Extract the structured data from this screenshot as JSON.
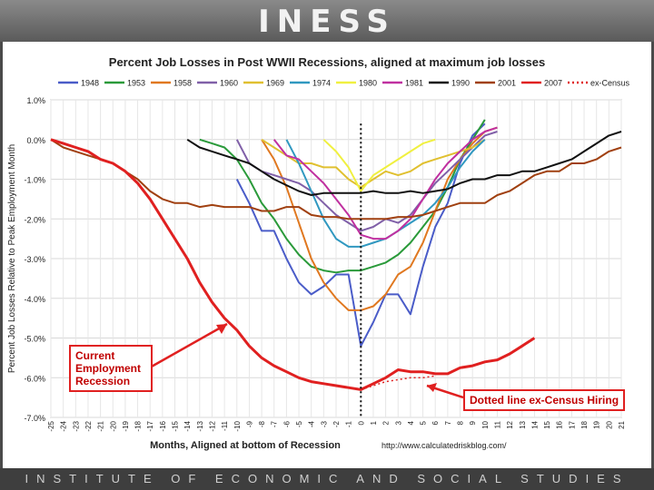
{
  "header": {
    "logo_text": "INESS"
  },
  "footer": {
    "text": "INSTITUTE OF ECONOMIC AND SOCIAL STUDIES"
  },
  "source": "http://www.calculatedriskblog.com/",
  "callouts": {
    "current": "Current Employment Recession",
    "dotted": "Dotted line ex-Census Hiring"
  },
  "chart_data": {
    "type": "line",
    "title": "Percent Job Losses in Post WWII Recessions, aligned at maximum job losses",
    "xlabel": "Months, Aligned at bottom of Recession",
    "ylabel": "Percent Job Losses Relative to Peak Employment Month",
    "xlim": [
      -25,
      21
    ],
    "ylim": [
      -7,
      1
    ],
    "x_ticks": [
      -25,
      -24,
      -23,
      -22,
      -21,
      -20,
      -19,
      -18,
      -17,
      -16,
      -15,
      -14,
      -13,
      -12,
      -11,
      -10,
      -9,
      -8,
      -7,
      -6,
      -5,
      -4,
      -3,
      -2,
      -1,
      0,
      1,
      2,
      3,
      4,
      5,
      6,
      7,
      8,
      9,
      10,
      11,
      12,
      13,
      14,
      15,
      16,
      17,
      18,
      19,
      20,
      21
    ],
    "y_ticks": [
      "1.0%",
      "0.0%",
      "-1.0%",
      "-2.0%",
      "-3.0%",
      "-4.0%",
      "-5.0%",
      "-6.0%",
      "-7.0%"
    ],
    "y_tick_values": [
      1,
      0,
      -1,
      -2,
      -3,
      -4,
      -5,
      -6,
      -7
    ],
    "grid": true,
    "legend_position": "top",
    "vertical_marker_x": 0,
    "series": [
      {
        "name": "1948",
        "color": "#4a5cc8",
        "points": [
          [
            -10,
            -1.0
          ],
          [
            -9,
            -1.6
          ],
          [
            -8,
            -2.3
          ],
          [
            -7,
            -2.3
          ],
          [
            -6,
            -3.0
          ],
          [
            -5,
            -3.6
          ],
          [
            -4,
            -3.9
          ],
          [
            -3,
            -3.7
          ],
          [
            -2,
            -3.4
          ],
          [
            -1,
            -3.4
          ],
          [
            0,
            -5.2
          ],
          [
            1,
            -4.6
          ],
          [
            2,
            -3.9
          ],
          [
            3,
            -3.9
          ],
          [
            4,
            -4.4
          ],
          [
            5,
            -3.2
          ],
          [
            6,
            -2.2
          ],
          [
            7,
            -1.6
          ],
          [
            8,
            -0.6
          ],
          [
            9,
            0.1
          ],
          [
            10,
            0.4
          ]
        ]
      },
      {
        "name": "1953",
        "color": "#2a9a3a",
        "points": [
          [
            -13,
            0.0
          ],
          [
            -12,
            -0.1
          ],
          [
            -11,
            -0.2
          ],
          [
            -10,
            -0.5
          ],
          [
            -9,
            -1.0
          ],
          [
            -8,
            -1.6
          ],
          [
            -7,
            -2.0
          ],
          [
            -6,
            -2.5
          ],
          [
            -5,
            -2.9
          ],
          [
            -4,
            -3.2
          ],
          [
            -3,
            -3.3
          ],
          [
            -2,
            -3.35
          ],
          [
            -1,
            -3.3
          ],
          [
            0,
            -3.3
          ],
          [
            1,
            -3.2
          ],
          [
            2,
            -3.1
          ],
          [
            3,
            -2.9
          ],
          [
            4,
            -2.6
          ],
          [
            5,
            -2.2
          ],
          [
            6,
            -1.8
          ],
          [
            7,
            -1.2
          ],
          [
            8,
            -0.5
          ],
          [
            9,
            0.0
          ],
          [
            10,
            0.5
          ]
        ]
      },
      {
        "name": "1958",
        "color": "#e07820",
        "points": [
          [
            -8,
            0.0
          ],
          [
            -7,
            -0.5
          ],
          [
            -6,
            -1.2
          ],
          [
            -5,
            -2.1
          ],
          [
            -4,
            -3.0
          ],
          [
            -3,
            -3.6
          ],
          [
            -2,
            -4.0
          ],
          [
            -1,
            -4.3
          ],
          [
            0,
            -4.3
          ],
          [
            1,
            -4.2
          ],
          [
            2,
            -3.9
          ],
          [
            3,
            -3.4
          ],
          [
            4,
            -3.2
          ],
          [
            5,
            -2.6
          ],
          [
            6,
            -1.8
          ],
          [
            7,
            -1.0
          ],
          [
            8,
            -0.5
          ],
          [
            9,
            -0.1
          ],
          [
            10,
            0.2
          ],
          [
            11,
            0.3
          ]
        ]
      },
      {
        "name": "1960",
        "color": "#8060a8",
        "points": [
          [
            -10,
            0.0
          ],
          [
            -9,
            -0.6
          ],
          [
            -8,
            -0.8
          ],
          [
            -7,
            -0.9
          ],
          [
            -6,
            -1.0
          ],
          [
            -5,
            -1.1
          ],
          [
            -4,
            -1.3
          ],
          [
            -3,
            -1.6
          ],
          [
            -2,
            -1.9
          ],
          [
            -1,
            -2.1
          ],
          [
            0,
            -2.3
          ],
          [
            1,
            -2.2
          ],
          [
            2,
            -2.0
          ],
          [
            3,
            -2.1
          ],
          [
            4,
            -1.9
          ],
          [
            5,
            -1.5
          ],
          [
            6,
            -1.1
          ],
          [
            7,
            -0.8
          ],
          [
            8,
            -0.5
          ],
          [
            9,
            -0.2
          ],
          [
            10,
            0.1
          ],
          [
            11,
            0.2
          ]
        ]
      },
      {
        "name": "1969",
        "color": "#e0c030",
        "points": [
          [
            -8,
            0.0
          ],
          [
            -7,
            -0.2
          ],
          [
            -6,
            -0.4
          ],
          [
            -5,
            -0.6
          ],
          [
            -4,
            -0.6
          ],
          [
            -3,
            -0.7
          ],
          [
            -2,
            -0.7
          ],
          [
            -1,
            -1.0
          ],
          [
            0,
            -1.2
          ],
          [
            1,
            -1.0
          ],
          [
            2,
            -0.8
          ],
          [
            3,
            -0.9
          ],
          [
            4,
            -0.8
          ],
          [
            5,
            -0.6
          ],
          [
            6,
            -0.5
          ],
          [
            7,
            -0.4
          ],
          [
            8,
            -0.3
          ],
          [
            9,
            -0.2
          ],
          [
            10,
            0.0
          ]
        ]
      },
      {
        "name": "1974",
        "color": "#3098c0",
        "points": [
          [
            -6,
            0.0
          ],
          [
            -5,
            -0.6
          ],
          [
            -4,
            -1.3
          ],
          [
            -3,
            -2.0
          ],
          [
            -2,
            -2.5
          ],
          [
            -1,
            -2.7
          ],
          [
            0,
            -2.7
          ],
          [
            1,
            -2.6
          ],
          [
            2,
            -2.5
          ],
          [
            3,
            -2.3
          ],
          [
            4,
            -2.1
          ],
          [
            5,
            -1.9
          ],
          [
            6,
            -1.6
          ],
          [
            7,
            -1.2
          ],
          [
            8,
            -0.7
          ],
          [
            9,
            -0.3
          ],
          [
            10,
            0.0
          ]
        ]
      },
      {
        "name": "1980",
        "color": "#f0f040",
        "points": [
          [
            -3,
            0.0
          ],
          [
            -2,
            -0.3
          ],
          [
            -1,
            -0.7
          ],
          [
            0,
            -1.3
          ],
          [
            1,
            -0.9
          ],
          [
            2,
            -0.7
          ],
          [
            3,
            -0.5
          ],
          [
            4,
            -0.3
          ],
          [
            5,
            -0.1
          ],
          [
            6,
            0.0
          ]
        ]
      },
      {
        "name": "1981",
        "color": "#c030a0",
        "points": [
          [
            -7,
            0.0
          ],
          [
            -6,
            -0.4
          ],
          [
            -5,
            -0.5
          ],
          [
            -4,
            -0.8
          ],
          [
            -3,
            -1.1
          ],
          [
            -2,
            -1.5
          ],
          [
            -1,
            -1.9
          ],
          [
            0,
            -2.4
          ],
          [
            1,
            -2.5
          ],
          [
            2,
            -2.5
          ],
          [
            3,
            -2.3
          ],
          [
            4,
            -2.0
          ],
          [
            5,
            -1.5
          ],
          [
            6,
            -1.0
          ],
          [
            7,
            -0.6
          ],
          [
            8,
            -0.3
          ],
          [
            9,
            0.0
          ],
          [
            10,
            0.2
          ],
          [
            11,
            0.3
          ]
        ]
      },
      {
        "name": "1990",
        "color": "#111111",
        "points": [
          [
            -14,
            0.0
          ],
          [
            -13,
            -0.2
          ],
          [
            -12,
            -0.3
          ],
          [
            -11,
            -0.4
          ],
          [
            -10,
            -0.5
          ],
          [
            -9,
            -0.6
          ],
          [
            -8,
            -0.8
          ],
          [
            -7,
            -1.0
          ],
          [
            -6,
            -1.15
          ],
          [
            -5,
            -1.3
          ],
          [
            -4,
            -1.4
          ],
          [
            -3,
            -1.35
          ],
          [
            -2,
            -1.35
          ],
          [
            -1,
            -1.35
          ],
          [
            0,
            -1.35
          ],
          [
            1,
            -1.3
          ],
          [
            2,
            -1.35
          ],
          [
            3,
            -1.35
          ],
          [
            4,
            -1.3
          ],
          [
            5,
            -1.35
          ],
          [
            6,
            -1.3
          ],
          [
            7,
            -1.25
          ],
          [
            8,
            -1.1
          ],
          [
            9,
            -1.0
          ],
          [
            10,
            -1.0
          ],
          [
            11,
            -0.9
          ],
          [
            12,
            -0.9
          ],
          [
            13,
            -0.8
          ],
          [
            14,
            -0.8
          ],
          [
            15,
            -0.7
          ],
          [
            16,
            -0.6
          ],
          [
            17,
            -0.5
          ],
          [
            18,
            -0.3
          ],
          [
            19,
            -0.1
          ],
          [
            20,
            0.1
          ],
          [
            21,
            0.2
          ]
        ]
      },
      {
        "name": "2001",
        "color": "#a04010",
        "points": [
          [
            -25,
            0.0
          ],
          [
            -24,
            -0.2
          ],
          [
            -23,
            -0.3
          ],
          [
            -22,
            -0.4
          ],
          [
            -21,
            -0.5
          ],
          [
            -20,
            -0.6
          ],
          [
            -19,
            -0.8
          ],
          [
            -18,
            -1.0
          ],
          [
            -17,
            -1.3
          ],
          [
            -16,
            -1.5
          ],
          [
            -15,
            -1.6
          ],
          [
            -14,
            -1.6
          ],
          [
            -13,
            -1.7
          ],
          [
            -12,
            -1.65
          ],
          [
            -11,
            -1.7
          ],
          [
            -10,
            -1.7
          ],
          [
            -9,
            -1.7
          ],
          [
            -8,
            -1.8
          ],
          [
            -7,
            -1.8
          ],
          [
            -6,
            -1.7
          ],
          [
            -5,
            -1.7
          ],
          [
            -4,
            -1.9
          ],
          [
            -3,
            -1.95
          ],
          [
            -2,
            -1.95
          ],
          [
            -1,
            -2.0
          ],
          [
            0,
            -2.0
          ],
          [
            1,
            -2.0
          ],
          [
            2,
            -2.0
          ],
          [
            3,
            -1.95
          ],
          [
            4,
            -1.95
          ],
          [
            5,
            -1.9
          ],
          [
            6,
            -1.8
          ],
          [
            7,
            -1.7
          ],
          [
            8,
            -1.6
          ],
          [
            9,
            -1.6
          ],
          [
            10,
            -1.6
          ],
          [
            11,
            -1.4
          ],
          [
            12,
            -1.3
          ],
          [
            13,
            -1.1
          ],
          [
            14,
            -0.9
          ],
          [
            15,
            -0.8
          ],
          [
            16,
            -0.8
          ],
          [
            17,
            -0.6
          ],
          [
            18,
            -0.6
          ],
          [
            19,
            -0.5
          ],
          [
            20,
            -0.3
          ],
          [
            21,
            -0.2
          ]
        ]
      },
      {
        "name": "2007",
        "color": "#e02020",
        "points": [
          [
            -25,
            0.0
          ],
          [
            -24,
            -0.1
          ],
          [
            -23,
            -0.2
          ],
          [
            -22,
            -0.3
          ],
          [
            -21,
            -0.5
          ],
          [
            -20,
            -0.6
          ],
          [
            -19,
            -0.8
          ],
          [
            -18,
            -1.1
          ],
          [
            -17,
            -1.5
          ],
          [
            -16,
            -2.0
          ],
          [
            -15,
            -2.5
          ],
          [
            -14,
            -3.0
          ],
          [
            -13,
            -3.6
          ],
          [
            -12,
            -4.1
          ],
          [
            -11,
            -4.5
          ],
          [
            -10,
            -4.8
          ],
          [
            -9,
            -5.2
          ],
          [
            -8,
            -5.5
          ],
          [
            -7,
            -5.7
          ],
          [
            -6,
            -5.85
          ],
          [
            -5,
            -6.0
          ],
          [
            -4,
            -6.1
          ],
          [
            -3,
            -6.15
          ],
          [
            -2,
            -6.2
          ],
          [
            -1,
            -6.25
          ],
          [
            0,
            -6.3
          ],
          [
            1,
            -6.15
          ],
          [
            2,
            -6.0
          ],
          [
            3,
            -5.8
          ],
          [
            4,
            -5.85
          ],
          [
            5,
            -5.85
          ],
          [
            6,
            -5.9
          ],
          [
            7,
            -5.9
          ],
          [
            8,
            -5.75
          ],
          [
            9,
            -5.7
          ],
          [
            10,
            -5.6
          ],
          [
            11,
            -5.55
          ],
          [
            12,
            -5.4
          ],
          [
            13,
            -5.2
          ],
          [
            14,
            -5.0
          ]
        ]
      },
      {
        "name": "ex-Census",
        "color": "#e02020",
        "dashed": true,
        "points": [
          [
            0,
            -6.3
          ],
          [
            1,
            -6.2
          ],
          [
            2,
            -6.1
          ],
          [
            3,
            -6.05
          ],
          [
            4,
            -6.0
          ],
          [
            5,
            -6.0
          ],
          [
            6,
            -5.95
          ]
        ]
      }
    ]
  }
}
